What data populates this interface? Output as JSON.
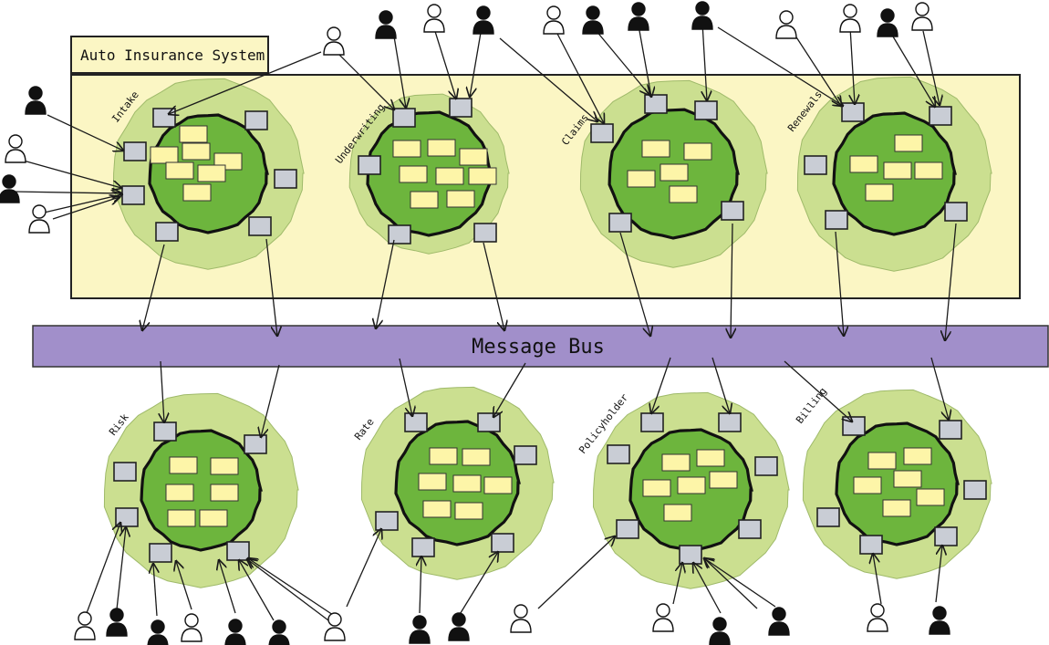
{
  "system": {
    "title": "Auto Insurance System"
  },
  "bus": {
    "label": "Message Bus"
  },
  "colors": {
    "system_fill": "#fbf6c4",
    "bus_fill": "#a18fca",
    "outer_circle": "#cbdf90",
    "inner_circle": "#6db53d",
    "sticky": "#fdf5a8",
    "port": "#c9cdd5",
    "line": "#1a1a1a"
  },
  "services_top": [
    {
      "name": "Intake"
    },
    {
      "name": "Underwriting"
    },
    {
      "name": "Claims"
    },
    {
      "name": "Renewals"
    }
  ],
  "services_bottom": [
    {
      "name": "Risk"
    },
    {
      "name": "Rate"
    },
    {
      "name": "Policyholder"
    },
    {
      "name": "Billing"
    }
  ],
  "icons": {
    "actor": "person-icon",
    "port": "port-square-icon",
    "note": "sticky-note-icon"
  }
}
